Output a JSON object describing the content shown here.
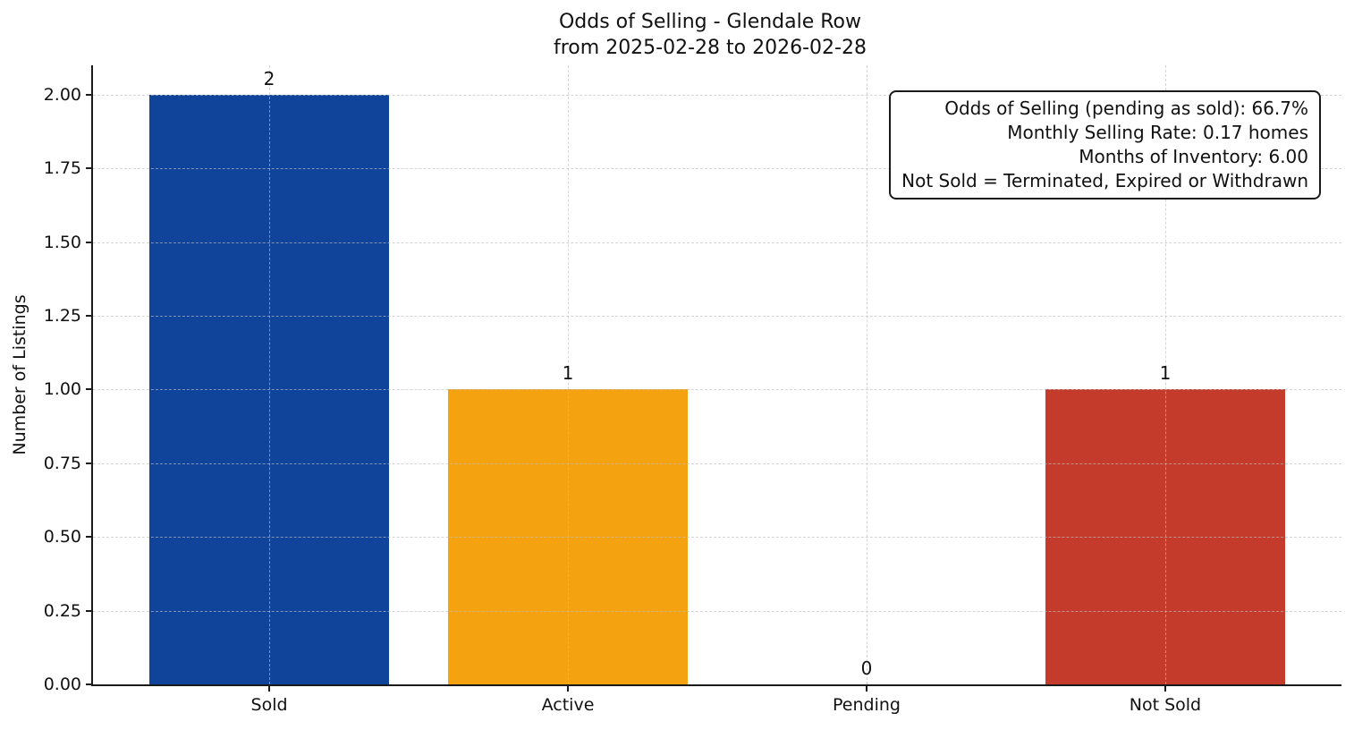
{
  "chart_data": {
    "type": "bar",
    "title": "Odds of Selling - Glendale Row",
    "subtitle": "from 2025-02-28 to 2026-02-28",
    "categories": [
      "Sold",
      "Active",
      "Pending",
      "Not Sold"
    ],
    "values": [
      2,
      1,
      0,
      1
    ],
    "value_labels": [
      "2",
      "1",
      "0",
      "1"
    ],
    "bar_colors": [
      "#10439A",
      "#F5A210",
      null,
      "#C43B2C"
    ],
    "xlabel": "",
    "ylabel": "Number of Listings",
    "ylim": [
      0,
      2.1
    ],
    "ytick_labels": [
      "0.00",
      "0.25",
      "0.50",
      "0.75",
      "1.00",
      "1.25",
      "1.50",
      "1.75",
      "2.00"
    ],
    "grid": {
      "axes": "both",
      "style": "dashed",
      "color": "#dcdcdc",
      "above_bars": true
    },
    "legend": "none",
    "annotation_box": {
      "position": "top-right",
      "lines": [
        "Odds of Selling (pending as sold): 66.7%",
        "Monthly Selling Rate: 0.17 homes",
        "Months of Inventory: 6.00",
        "Not Sold = Terminated, Expired or Withdrawn"
      ]
    }
  }
}
